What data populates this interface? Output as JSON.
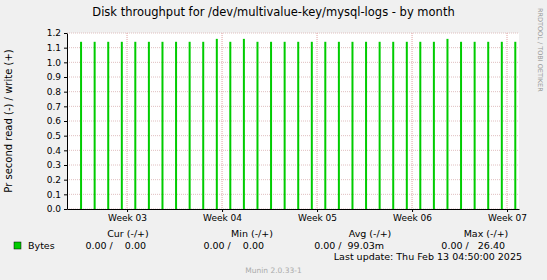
{
  "chart_data": {
    "type": "bar",
    "title": "Disk throughput for /dev/multivalue-key/mysql-logs - by month",
    "y_label": "Pr second read (-) / write (+)",
    "x": [
      2.516,
      2.659,
      2.802,
      2.945,
      3.087,
      3.23,
      3.373,
      3.516,
      3.659,
      3.802,
      3.945,
      4.087,
      4.23,
      4.373,
      4.516,
      4.659,
      4.802,
      4.945,
      5.087,
      5.23,
      5.373,
      5.516,
      5.659,
      5.802,
      5.945,
      6.087,
      6.23,
      6.373,
      6.516,
      6.659,
      6.802,
      6.945,
      7.087
    ],
    "series": [
      {
        "name": "Bytes",
        "color": "#00cc00",
        "values": [
          1.14,
          1.14,
          1.14,
          1.14,
          1.14,
          1.14,
          1.14,
          1.14,
          1.14,
          1.14,
          1.16,
          1.14,
          1.16,
          1.14,
          1.14,
          1.14,
          1.14,
          1.14,
          1.14,
          1.14,
          1.14,
          1.14,
          1.14,
          1.14,
          1.14,
          1.14,
          1.14,
          1.16,
          1.14,
          1.14,
          1.14,
          1.14,
          1.14
        ],
        "stats": [
          "0.00 /    0.00",
          "0.00 /    0.00",
          "0.00 /  99.03m",
          "0.00 /   26.40"
        ]
      }
    ],
    "stat_headers": [
      "Cur (-/+)",
      "Min (-/+)",
      "Avg (-/+)",
      "Max (-/+)"
    ],
    "last_update": "Last update: Thu Feb 13 04:50:00 2025",
    "footer": "Munin 2.0.33-1",
    "watermark": "RRDTOOL / TOBI OETIKER",
    "xlim": [
      2.368,
      7.126
    ],
    "xticks": [
      {
        "value": 3,
        "label": "Week 03"
      },
      {
        "value": 4,
        "label": "Week 04"
      },
      {
        "value": 5,
        "label": "Week 05"
      },
      {
        "value": 6,
        "label": "Week 06"
      },
      {
        "value": 7,
        "label": "Week 07"
      }
    ],
    "ylim": [
      0,
      1.2
    ],
    "yticks": [
      {
        "value": 0,
        "label": "0.0"
      },
      0.1,
      0.2,
      0.3,
      0.4,
      0.5,
      0.6,
      0.7,
      0.8,
      0.9,
      {
        "value": 1,
        "label": "1.0"
      },
      1.1,
      1.2
    ],
    "grid": true
  }
}
